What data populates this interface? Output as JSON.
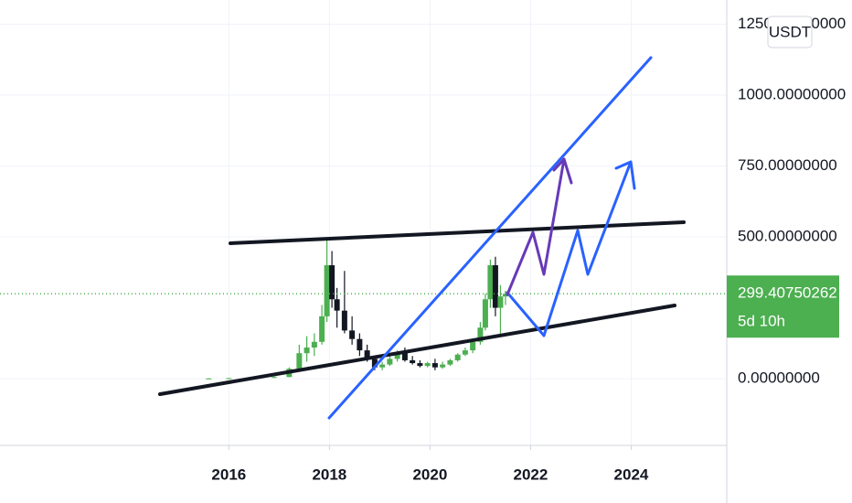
{
  "chart_data": {
    "type": "candlestick",
    "currency": "USDT",
    "countdown": "5d 10h",
    "x": [
      2015.6,
      2016.0,
      2016.5,
      2016.9,
      2017.2,
      2017.4,
      2017.55,
      2017.7,
      2017.85,
      2017.95,
      2018.05,
      2018.15,
      2018.3,
      2018.45,
      2018.6,
      2018.75,
      2018.9,
      2019.05,
      2019.2,
      2019.35,
      2019.5,
      2019.65,
      2019.8,
      2019.95,
      2020.1,
      2020.25,
      2020.4,
      2020.55,
      2020.7,
      2020.85,
      2021.0,
      2021.1,
      2021.2,
      2021.3,
      2021.4,
      2021.5
    ],
    "open": [
      1,
      1,
      2,
      4,
      6,
      35,
      90,
      110,
      130,
      220,
      400,
      280,
      240,
      170,
      140,
      100,
      70,
      40,
      50,
      70,
      90,
      65,
      55,
      45,
      55,
      40,
      50,
      65,
      85,
      100,
      130,
      180,
      280,
      400,
      250,
      290
    ],
    "high": [
      2,
      3,
      5,
      8,
      40,
      120,
      150,
      160,
      260,
      490,
      450,
      320,
      380,
      220,
      160,
      120,
      80,
      60,
      80,
      100,
      110,
      80,
      65,
      60,
      70,
      60,
      70,
      90,
      110,
      140,
      200,
      300,
      420,
      430,
      330,
      310
    ],
    "low": [
      0,
      1,
      1,
      3,
      5,
      30,
      60,
      80,
      120,
      200,
      250,
      180,
      160,
      120,
      80,
      60,
      30,
      30,
      45,
      60,
      60,
      50,
      40,
      40,
      30,
      35,
      45,
      60,
      80,
      90,
      120,
      170,
      250,
      220,
      150,
      260
    ],
    "close": [
      1,
      2,
      4,
      6,
      35,
      90,
      110,
      130,
      220,
      400,
      280,
      240,
      170,
      140,
      100,
      70,
      40,
      50,
      70,
      90,
      65,
      55,
      45,
      55,
      40,
      50,
      65,
      85,
      100,
      130,
      180,
      280,
      400,
      250,
      290,
      299.40750262
    ],
    "up_color": "#4caf50",
    "down_color": "#131722",
    "xlim": [
      2011.45,
      2025.9
    ],
    "xticks": [
      2016,
      2018,
      2020,
      2022,
      2024
    ],
    "ylim": [
      -235,
      1335
    ],
    "yticks": [
      {
        "value": 0,
        "label": "0.00000000"
      },
      {
        "value": 500,
        "label": "500.00000000"
      },
      {
        "value": 750,
        "label": "750.00000000"
      },
      {
        "value": 1000,
        "label": "1000.00000000"
      },
      {
        "value": 1250,
        "label": "1250.00000000"
      }
    ],
    "grid": true
  }
}
